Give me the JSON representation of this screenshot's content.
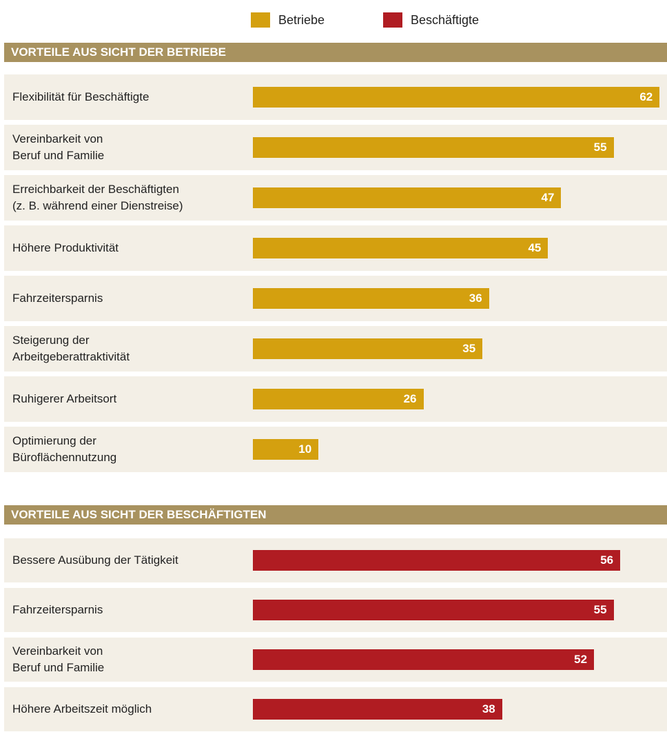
{
  "chart_data": [
    {
      "type": "bar",
      "title": "VORTEILE AUS SICHT DER BETRIEBE",
      "categories": [
        "Flexibilität für Beschäftigte",
        "Vereinbarkeit von\nBeruf und Familie",
        "Erreichbarkeit der Beschäftigten\n(z. B. während einer Dienstreise)",
        "Höhere Produktivität",
        "Fahrzeitersparnis",
        "Steigerung der\nArbeitgeberattraktivität",
        "Ruhigerer Arbeitsort",
        "Optimierung der\nBüroflächennutzung"
      ],
      "series": [
        {
          "name": "Betriebe",
          "color": "#d4a00f",
          "values": [
            62,
            55,
            47,
            45,
            36,
            35,
            26,
            10
          ]
        }
      ]
    },
    {
      "type": "bar",
      "title": "VORTEILE AUS SICHT DER BESCHÄFTIGTEN",
      "categories": [
        "Bessere Ausübung der Tätigkeit",
        "Fahrzeitersparnis",
        "Vereinbarkeit von\nBeruf und Familie",
        "Höhere Arbeitszeit möglich"
      ],
      "series": [
        {
          "name": "Beschäftigte",
          "color": "#b01c22",
          "values": [
            56,
            55,
            52,
            38
          ]
        }
      ]
    }
  ]
}
